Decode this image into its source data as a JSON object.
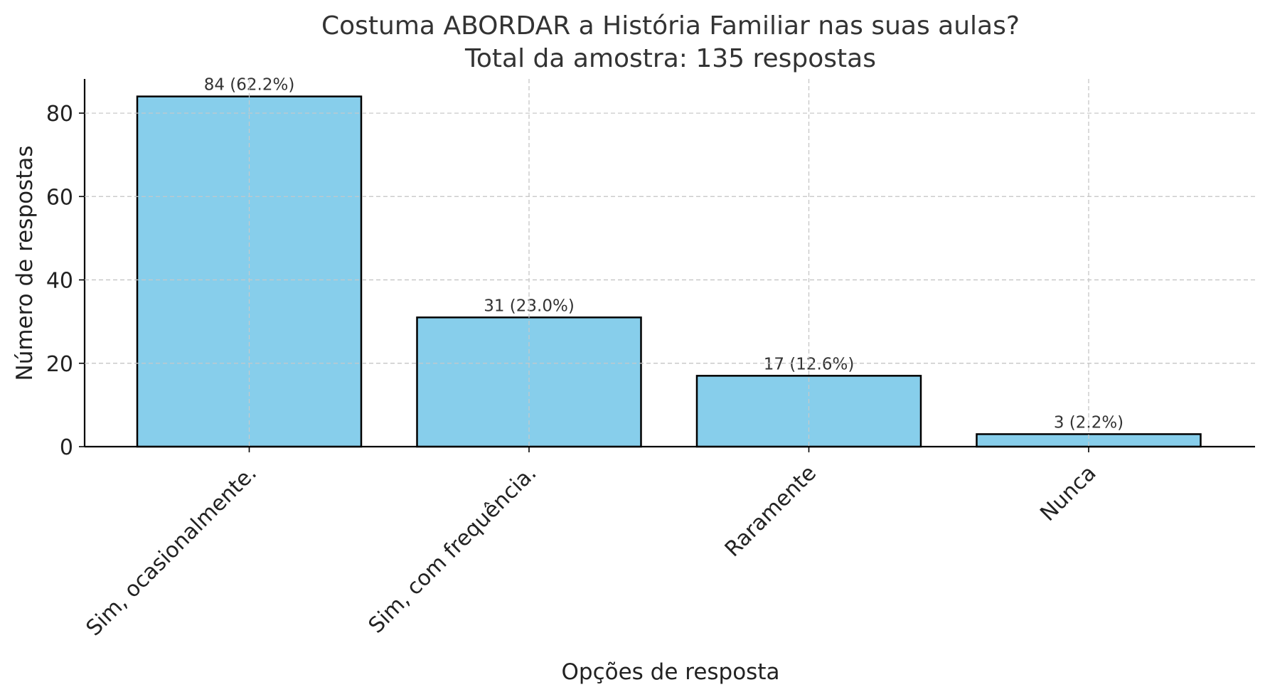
{
  "chart_data": {
    "type": "bar",
    "title": "Costuma ABORDAR a História Familiar nas suas aulas?",
    "subtitle": "Total da amostra: 135 respostas",
    "xlabel": "Opções de resposta",
    "ylabel": "Número de respostas",
    "categories": [
      "Sim, ocasionalmente.",
      "Sim, com frequência.",
      "Raramente",
      "Nunca"
    ],
    "values": [
      84,
      31,
      17,
      3
    ],
    "data_labels": [
      "84 (62.2%)",
      "31 (23.0%)",
      "17 (12.6%)",
      "3 (2.2%)"
    ],
    "yticks": [
      0,
      20,
      40,
      60,
      80
    ],
    "ylim": [
      0,
      88.2
    ],
    "grid": true,
    "bar_color": "#87ceeb",
    "bar_edge_color": "#000000"
  }
}
